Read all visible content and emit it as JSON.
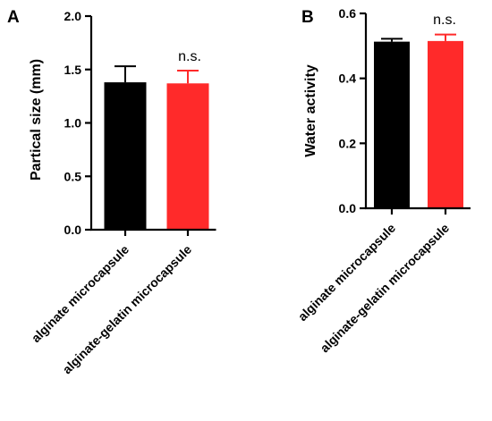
{
  "chart_data": [
    {
      "panel": "A",
      "type": "bar",
      "categories": [
        "alginate microcapsule",
        "alginate-gelatin microcapsule"
      ],
      "values": [
        1.38,
        1.37
      ],
      "errors": [
        0.15,
        0.12
      ],
      "colors": [
        "#000000",
        "#ff2a2a"
      ],
      "ylabel": "Partical size (mm)",
      "ylim": [
        0,
        2.0
      ],
      "yticks": [
        "0.0",
        "0.5",
        "1.0",
        "1.5",
        "2.0"
      ],
      "annotation": "n.s.",
      "grid": false
    },
    {
      "panel": "B",
      "type": "bar",
      "categories": [
        "alginate microcapsule",
        "alginate-gelatin microcapsule"
      ],
      "values": [
        0.513,
        0.515
      ],
      "errors": [
        0.009,
        0.02
      ],
      "colors": [
        "#000000",
        "#ff2a2a"
      ],
      "ylabel": "Water activity",
      "ylim": [
        0,
        0.6
      ],
      "yticks": [
        "0.0",
        "0.2",
        "0.4",
        "0.6"
      ],
      "annotation": "n.s.",
      "grid": false
    }
  ]
}
